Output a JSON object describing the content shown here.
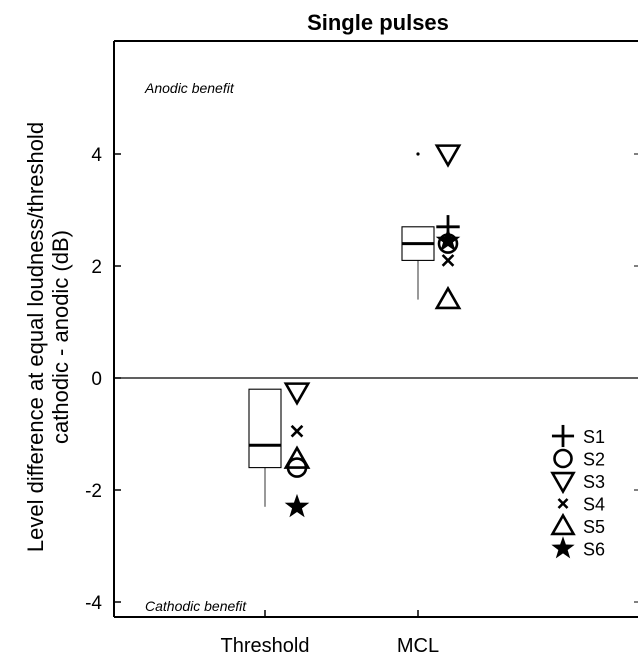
{
  "chart_data": {
    "type": "box",
    "title": "Single pulses",
    "ylabel_lines": [
      "Level difference at equal loudness/threshold",
      "cathodic - anodic (dB)"
    ],
    "xlabel": "",
    "categories": [
      "Threshold",
      "MCL"
    ],
    "ylim": [
      -4.4,
      5.9
    ],
    "yticks": [
      4,
      2,
      0,
      -2,
      -4
    ],
    "ytick_labels": [
      "4",
      "2",
      "0",
      "-2",
      "-4"
    ],
    "zero_line": true,
    "annotations": {
      "top": "Anodic benefit",
      "bottom": "Cathodic benefit"
    },
    "boxes": [
      {
        "category": "Threshold",
        "whisker_low": -2.3,
        "q1": -1.6,
        "median": -1.2,
        "q3": -0.2,
        "whisker_high": -0.2,
        "outliers": []
      },
      {
        "category": "MCL",
        "whisker_low": 1.4,
        "q1": 2.1,
        "median": 2.4,
        "q3": 2.7,
        "whisker_high": 2.7,
        "outliers": [
          4.0
        ]
      }
    ],
    "series": [
      {
        "name": "S1",
        "marker": "plus",
        "values": [
          null,
          2.7
        ]
      },
      {
        "name": "S2",
        "marker": "circle",
        "values": [
          -1.6,
          2.4
        ]
      },
      {
        "name": "S3",
        "marker": "triangle-down",
        "values": [
          -0.25,
          4.0
        ]
      },
      {
        "name": "S4",
        "marker": "x",
        "values": [
          -0.95,
          2.1
        ]
      },
      {
        "name": "S5",
        "marker": "triangle-up",
        "values": [
          -1.45,
          1.4
        ]
      },
      {
        "name": "S6",
        "marker": "star",
        "values": [
          -2.3,
          2.45
        ]
      }
    ],
    "legend_position": "bottom-right",
    "grid": false
  }
}
